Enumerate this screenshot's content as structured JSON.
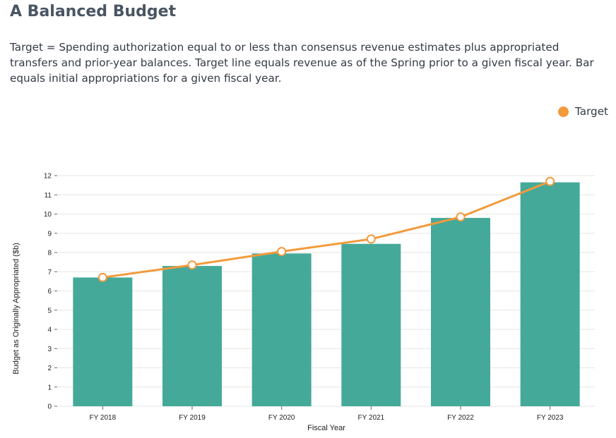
{
  "header": {
    "title": "A Balanced Budget",
    "description": "Target = Spending authorization equal to or less than consensus revenue estimates plus appropriated transfers and prior-year balances. Target line equals revenue as of the Spring prior to a given fiscal year. Bar equals initial appropriations for a given fiscal year."
  },
  "legend": {
    "label": "Target"
  },
  "colors": {
    "bar": "#45a99a",
    "line": "#f39a3b",
    "marker_fill": "#ffffff",
    "grid": "#e6e6e6"
  },
  "chart_data": {
    "type": "bar",
    "categories": [
      "FY 2018",
      "FY 2019",
      "FY 2020",
      "FY 2021",
      "FY 2022",
      "FY 2023"
    ],
    "series": [
      {
        "type": "bar",
        "values": [
          6.7,
          7.3,
          7.95,
          8.45,
          9.8,
          11.65
        ]
      },
      {
        "name": "Target",
        "type": "line",
        "values": [
          6.7,
          7.35,
          8.05,
          8.7,
          9.85,
          11.7
        ]
      }
    ],
    "xlabel": "Fiscal Year",
    "ylabel": "Budget as Originally Appropriated ($b)",
    "ylim": [
      0,
      12
    ],
    "yticks": [
      0,
      1,
      2,
      3,
      4,
      5,
      6,
      7,
      8,
      9,
      10,
      11,
      12
    ],
    "grid": true,
    "legend_position": "top-right"
  }
}
